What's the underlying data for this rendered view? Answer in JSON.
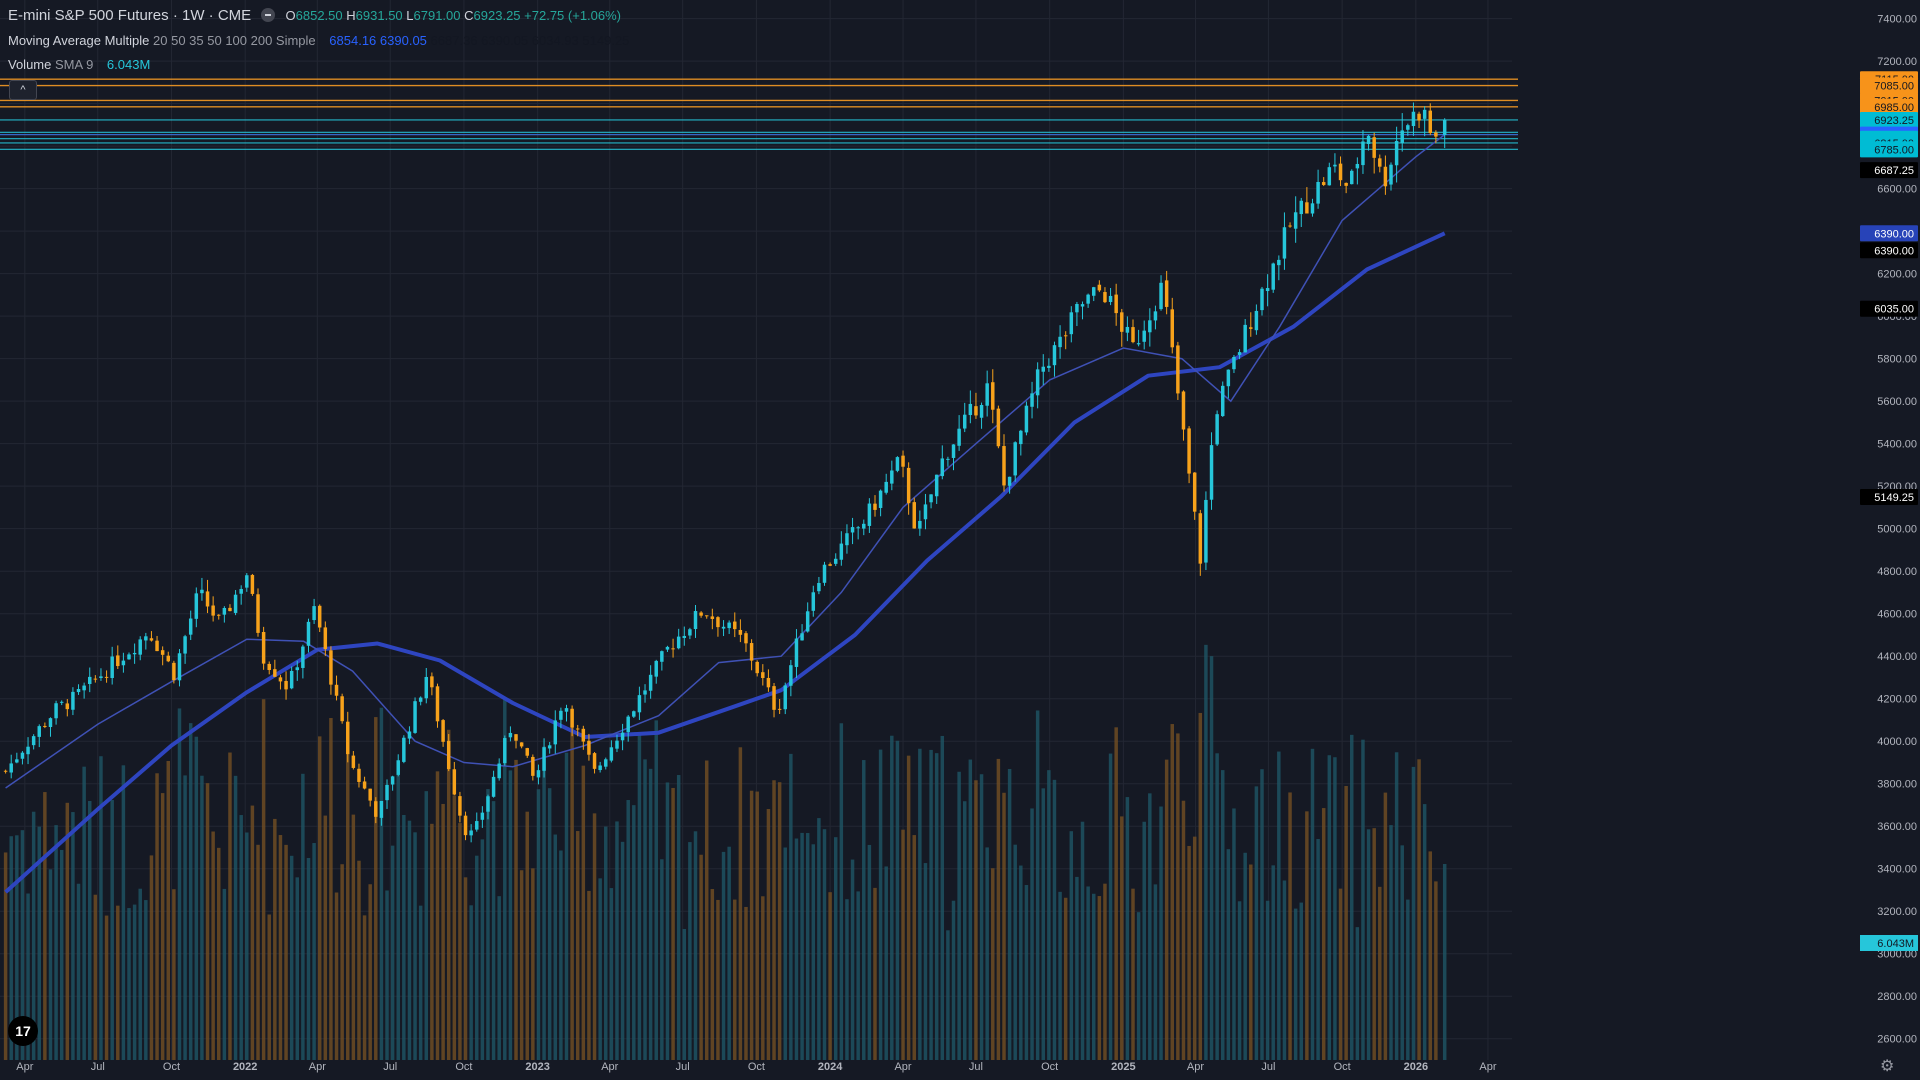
{
  "symbol": {
    "name": "E-mini S&P 500 Futures",
    "interval": "1W",
    "exchange": "CME",
    "open_label": "O",
    "open": "6852.50",
    "high_label": "H",
    "high": "6931.50",
    "low_label": "L",
    "low": "6791.00",
    "close_label": "C",
    "close": "6923.25",
    "change": "+72.75 (+1.06%)"
  },
  "indicators": {
    "ma_name": "Moving Average Multiple",
    "ma_params": "20 50 35 50 100 200 Simple",
    "ma_values": [
      "6854.16",
      "6390.05",
      "6687.36",
      "6390.05",
      "6034.93",
      "5149.25"
    ],
    "volume_name": "Volume",
    "volume_params": "SMA 9",
    "volume_value": "6.043M"
  },
  "colors": {
    "background": "#151924",
    "up": "#26c6da",
    "down": "#f7a21b",
    "ma_fast": "#3f51b5",
    "ma_slow": "#2e45c0",
    "grid": "#232733",
    "axis_text": "#b2b5be",
    "orange_line": "#f59a23",
    "cyan_line": "#26c6da"
  },
  "icons": {
    "collapse": "chevron-up-icon",
    "logo": "tradingview-logo",
    "settings": "gear-icon",
    "visibility": "eye-icon"
  },
  "collapse_glyph": "^",
  "logo_text": "17",
  "settings_glyph": "⚙",
  "chart_data": {
    "type": "candlestick",
    "title": "E-mini S&P 500 Futures · 1W · CME",
    "y_range": [
      2500,
      7450
    ],
    "y_ticks": [
      2600,
      2800,
      3000,
      3200,
      3400,
      3600,
      3800,
      4000,
      4200,
      4400,
      4600,
      4800,
      5000,
      5200,
      5400,
      5600,
      5800,
      6000,
      6200,
      6400,
      6600,
      6800,
      7000,
      7200,
      7400
    ],
    "y_tick_labels": [
      "2600.00",
      "2800.00",
      "3000.00",
      "3200.00",
      "3400.00",
      "3600.00",
      "3800.00",
      "4000.00",
      "4200.00",
      "4400.00",
      "4600.00",
      "4800.00",
      "5000.00",
      "5200.00",
      "5400.00",
      "5600.00",
      "5800.00",
      "6000.00",
      "6200.00",
      "6400.00",
      "6600.00",
      "6800.00",
      "7000.00",
      "7200.00",
      "7400.00"
    ],
    "x_ticks": [
      {
        "date": "2021-04-01",
        "label": "Apr"
      },
      {
        "date": "2021-07-01",
        "label": "Jul"
      },
      {
        "date": "2021-10-01",
        "label": "Oct"
      },
      {
        "date": "2022-01-01",
        "label": "2022"
      },
      {
        "date": "2022-04-01",
        "label": "Apr"
      },
      {
        "date": "2022-07-01",
        "label": "Jul"
      },
      {
        "date": "2022-10-01",
        "label": "Oct"
      },
      {
        "date": "2023-01-01",
        "label": "2023"
      },
      {
        "date": "2023-04-01",
        "label": "Apr"
      },
      {
        "date": "2023-07-01",
        "label": "Jul"
      },
      {
        "date": "2023-10-01",
        "label": "Oct"
      },
      {
        "date": "2024-01-01",
        "label": "2024"
      },
      {
        "date": "2024-04-01",
        "label": "Apr"
      },
      {
        "date": "2024-07-01",
        "label": "Jul"
      },
      {
        "date": "2024-10-01",
        "label": "Oct"
      },
      {
        "date": "2025-01-01",
        "label": "2025"
      },
      {
        "date": "2025-04-01",
        "label": "Apr"
      },
      {
        "date": "2025-07-01",
        "label": "Jul"
      },
      {
        "date": "2025-10-01",
        "label": "Oct"
      },
      {
        "date": "2026-01-01",
        "label": "2026"
      },
      {
        "date": "2026-04-01",
        "label": "Apr"
      }
    ],
    "weekly_close_path": [
      [
        "2021-03-08",
        3860
      ],
      [
        "2021-04-01",
        3980
      ],
      [
        "2021-05-10",
        4150
      ],
      [
        "2021-06-01",
        4200
      ],
      [
        "2021-07-01",
        4300
      ],
      [
        "2021-08-15",
        4450
      ],
      [
        "2021-09-03",
        4520
      ],
      [
        "2021-10-04",
        4320
      ],
      [
        "2021-11-04",
        4700
      ],
      [
        "2021-12-01",
        4550
      ],
      [
        "2022-01-03",
        4790
      ],
      [
        "2022-01-24",
        4400
      ],
      [
        "2022-02-24",
        4250
      ],
      [
        "2022-03-29",
        4630
      ],
      [
        "2022-05-12",
        3900
      ],
      [
        "2022-06-16",
        3650
      ],
      [
        "2022-08-16",
        4320
      ],
      [
        "2022-09-30",
        3600
      ],
      [
        "2022-10-13",
        3550
      ],
      [
        "2022-11-30",
        4080
      ],
      [
        "2022-12-28",
        3810
      ],
      [
        "2023-02-02",
        4200
      ],
      [
        "2023-03-13",
        3850
      ],
      [
        "2023-05-01",
        4160
      ],
      [
        "2023-06-15",
        4450
      ],
      [
        "2023-07-27",
        4620
      ],
      [
        "2023-09-15",
        4470
      ],
      [
        "2023-10-27",
        4140
      ],
      [
        "2023-12-15",
        4770
      ],
      [
        "2024-02-15",
        5050
      ],
      [
        "2024-03-28",
        5320
      ],
      [
        "2024-04-19",
        4970
      ],
      [
        "2024-05-22",
        5340
      ],
      [
        "2024-07-16",
        5670
      ],
      [
        "2024-08-05",
        5200
      ],
      [
        "2024-09-20",
        5750
      ],
      [
        "2024-10-18",
        5900
      ],
      [
        "2024-11-08",
        6050
      ],
      [
        "2024-12-06",
        6130
      ],
      [
        "2025-01-13",
        5850
      ],
      [
        "2025-02-19",
        6150
      ],
      [
        "2025-03-13",
        5550
      ],
      [
        "2025-04-07",
        4860
      ],
      [
        "2025-04-25",
        5540
      ],
      [
        "2025-06-13",
        6030
      ],
      [
        "2025-07-31",
        6450
      ],
      [
        "2025-09-20",
        6700
      ],
      [
        "2025-10-10",
        6600
      ],
      [
        "2025-11-01",
        6900
      ],
      [
        "2025-11-21",
        6620
      ],
      [
        "2025-12-12",
        6880
      ],
      [
        "2026-01-09",
        6980
      ],
      [
        "2026-01-23",
        6820
      ],
      [
        "2026-02-06",
        6923.25
      ]
    ],
    "last_bar": {
      "date": "2026-02-06",
      "open": 6852.5,
      "high": 6931.5,
      "low": 6791.0,
      "close": 6923.25
    },
    "ma_fast_path": [
      [
        "2021-03-08",
        3780
      ],
      [
        "2021-07-01",
        4080
      ],
      [
        "2021-10-01",
        4280
      ],
      [
        "2022-01-03",
        4480
      ],
      [
        "2022-03-15",
        4470
      ],
      [
        "2022-05-15",
        4330
      ],
      [
        "2022-08-01",
        4000
      ],
      [
        "2022-10-01",
        3900
      ],
      [
        "2022-12-01",
        3880
      ],
      [
        "2023-03-01",
        3980
      ],
      [
        "2023-06-01",
        4120
      ],
      [
        "2023-08-15",
        4370
      ],
      [
        "2023-11-01",
        4400
      ],
      [
        "2024-01-15",
        4700
      ],
      [
        "2024-04-01",
        5100
      ],
      [
        "2024-07-01",
        5400
      ],
      [
        "2024-10-01",
        5700
      ],
      [
        "2025-01-01",
        5850
      ],
      [
        "2025-03-15",
        5800
      ],
      [
        "2025-05-15",
        5600
      ],
      [
        "2025-07-15",
        5950
      ],
      [
        "2025-10-01",
        6450
      ],
      [
        "2026-01-01",
        6750
      ],
      [
        "2026-02-06",
        6854.16
      ]
    ],
    "ma_slow_path": [
      [
        "2021-03-08",
        3290
      ],
      [
        "2021-07-01",
        3680
      ],
      [
        "2021-10-01",
        3980
      ],
      [
        "2022-01-03",
        4230
      ],
      [
        "2022-04-01",
        4430
      ],
      [
        "2022-06-15",
        4460
      ],
      [
        "2022-09-01",
        4380
      ],
      [
        "2022-12-01",
        4180
      ],
      [
        "2023-03-01",
        4020
      ],
      [
        "2023-06-01",
        4040
      ],
      [
        "2023-09-01",
        4160
      ],
      [
        "2023-11-01",
        4240
      ],
      [
        "2024-02-01",
        4500
      ],
      [
        "2024-05-01",
        4850
      ],
      [
        "2024-08-01",
        5150
      ],
      [
        "2024-11-01",
        5500
      ],
      [
        "2025-02-01",
        5720
      ],
      [
        "2025-05-01",
        5760
      ],
      [
        "2025-08-01",
        5950
      ],
      [
        "2025-11-01",
        6220
      ],
      [
        "2026-02-06",
        6390.05
      ]
    ],
    "horizontal_levels": [
      {
        "value": 7115.0,
        "label": "7115.00",
        "kind": "orange"
      },
      {
        "value": 7085.0,
        "label": "7085.00",
        "kind": "orange"
      },
      {
        "value": 7015.0,
        "label": "7015.00",
        "kind": "orange"
      },
      {
        "value": 6985.0,
        "label": "6985.00",
        "kind": "orange"
      },
      {
        "value": 6923.25,
        "label": "6923.25",
        "kind": "cyan"
      },
      {
        "value": 6865.0,
        "label": "6865.00",
        "kind": "cyan"
      },
      {
        "value": 6854.25,
        "label": "6854.25",
        "kind": "blue"
      },
      {
        "value": 6835.0,
        "label": "6835.00",
        "kind": "cyan"
      },
      {
        "value": 6815.0,
        "label": "6815.00",
        "kind": "cyan"
      },
      {
        "value": 6785.0,
        "label": "6785.00",
        "kind": "cyan"
      }
    ],
    "extra_price_labels": [
      {
        "value": 6687.25,
        "label": "6687.25",
        "kind": "black"
      },
      {
        "value": 6390.0,
        "label": "6390.00",
        "kind": "navy"
      },
      {
        "value": 6390.0,
        "label": "6390.00",
        "kind": "black",
        "offset": 1
      },
      {
        "value": 6035.0,
        "label": "6035.00",
        "kind": "black"
      },
      {
        "value": 5149.25,
        "label": "5149.25",
        "kind": "black"
      }
    ],
    "volume_label": "6.043M",
    "volume_range_millions": [
      0,
      60
    ]
  }
}
